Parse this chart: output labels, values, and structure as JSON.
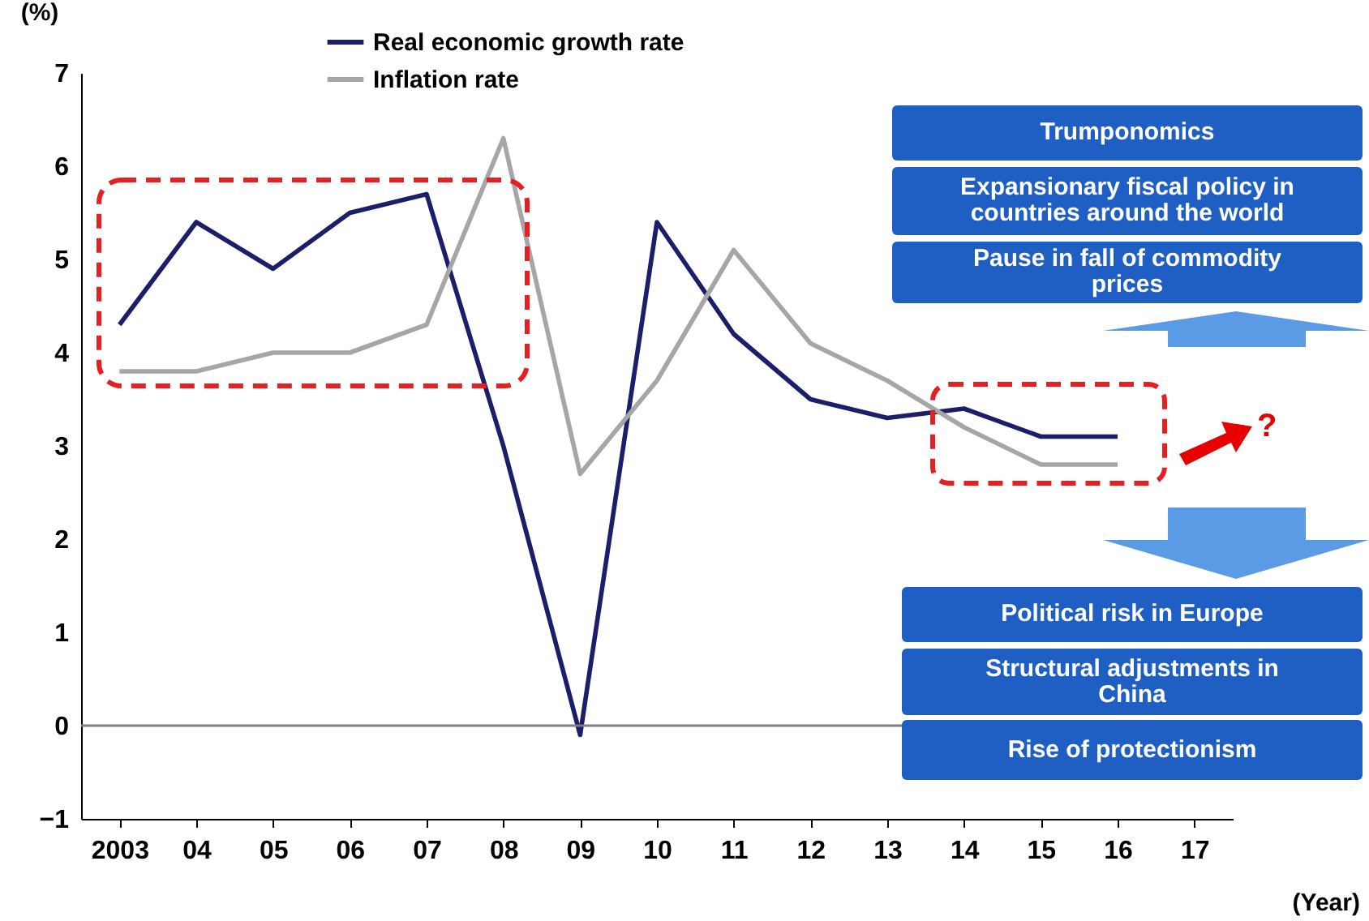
{
  "chart_data": {
    "type": "line",
    "ylabel": "(%)",
    "xlabel": "(Year)",
    "categories": [
      "2003",
      "04",
      "05",
      "06",
      "07",
      "08",
      "09",
      "10",
      "11",
      "12",
      "13",
      "14",
      "15",
      "16",
      "17"
    ],
    "series": [
      {
        "name": "Real economic growth rate",
        "color": "#1b1f6b",
        "values": [
          4.3,
          5.4,
          4.9,
          5.5,
          5.7,
          3.0,
          -0.1,
          5.4,
          4.2,
          3.5,
          3.3,
          3.4,
          3.1,
          3.1,
          null
        ]
      },
      {
        "name": "Inflation rate",
        "color": "#a6a6a6",
        "values": [
          3.8,
          3.8,
          4.0,
          4.0,
          4.3,
          6.3,
          2.7,
          3.7,
          5.1,
          4.1,
          3.7,
          3.2,
          2.8,
          2.8,
          null
        ]
      }
    ],
    "ylim": [
      -1,
      7
    ],
    "yticks": [
      -1,
      0,
      1,
      2,
      3,
      4,
      5,
      6,
      7
    ],
    "ref_lines": [
      {
        "axis": "y",
        "value": 0,
        "color": "#7f7f7f"
      }
    ],
    "legend": "top",
    "marker": "none",
    "line_style": "solid",
    "grid": false,
    "annotations": [
      "Trumponomics",
      "Expansionary fiscal policy in countries around the world",
      "Pause in fall of commodity prices",
      "?",
      "Political risk in Europe",
      "Structural adjustments in China",
      "Rise of protectionism"
    ]
  }
}
